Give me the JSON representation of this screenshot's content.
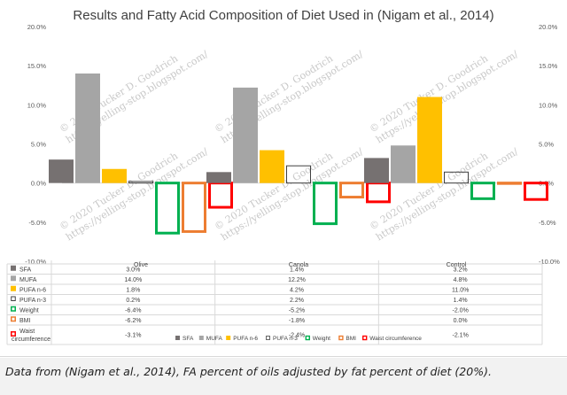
{
  "chart_data": {
    "type": "bar",
    "title": "Results and Fatty Acid Composition of Diet Used in (Nigam et al., 2014)",
    "categories": [
      "Olive",
      "Canola",
      "Control"
    ],
    "ylim": [
      -10,
      20
    ],
    "yticks": [
      "20.0%",
      "15.0%",
      "10.0%",
      "5.0%",
      "0.0%",
      "-5.0%",
      "-10.0%"
    ],
    "grid": false,
    "legend_position": "bottom",
    "series": [
      {
        "name": "SFA",
        "values": [
          3.0,
          1.4,
          3.2
        ],
        "labels": [
          "3.0%",
          "1.4%",
          "3.2%"
        ],
        "style": "fill",
        "color": "#767171"
      },
      {
        "name": "MUFA",
        "values": [
          14.0,
          12.2,
          4.8
        ],
        "labels": [
          "14.0%",
          "12.2%",
          "4.8%"
        ],
        "style": "fill",
        "color": "#a5a5a5"
      },
      {
        "name": "PUFA n-6",
        "values": [
          1.8,
          4.2,
          11.0
        ],
        "labels": [
          "1.8%",
          "4.2%",
          "11.0%"
        ],
        "style": "fill",
        "color": "#ffc000"
      },
      {
        "name": "PUFA n-3",
        "values": [
          0.2,
          2.2,
          1.4
        ],
        "labels": [
          "0.2%",
          "2.2%",
          "1.4%"
        ],
        "style": "outline",
        "color": "#404040"
      },
      {
        "name": "Weight",
        "values": [
          -6.4,
          -5.2,
          -2.0
        ],
        "labels": [
          "-6.4%",
          "-5.2%",
          "-2.0%"
        ],
        "style": "outline",
        "color": "#00b050"
      },
      {
        "name": "BMI",
        "values": [
          -6.2,
          -1.8,
          0.0
        ],
        "labels": [
          "-6.2%",
          "-1.8%",
          "0.0%"
        ],
        "style": "outline",
        "color": "#ed7d31"
      },
      {
        "name": "Waist circumference",
        "values": [
          -3.1,
          -2.4,
          -2.1
        ],
        "labels": [
          "-3.1%",
          "-2.4%",
          "-2.1%"
        ],
        "style": "outline",
        "color": "#ff0000"
      }
    ]
  },
  "caption": "Data from (Nigam et al., 2014), FA percent of oils adjusted by fat percent of diet (20%).",
  "watermark": [
    "© 2020 Tucker D. Goodrich",
    "https://yelling-stop.blogspot.com/"
  ]
}
